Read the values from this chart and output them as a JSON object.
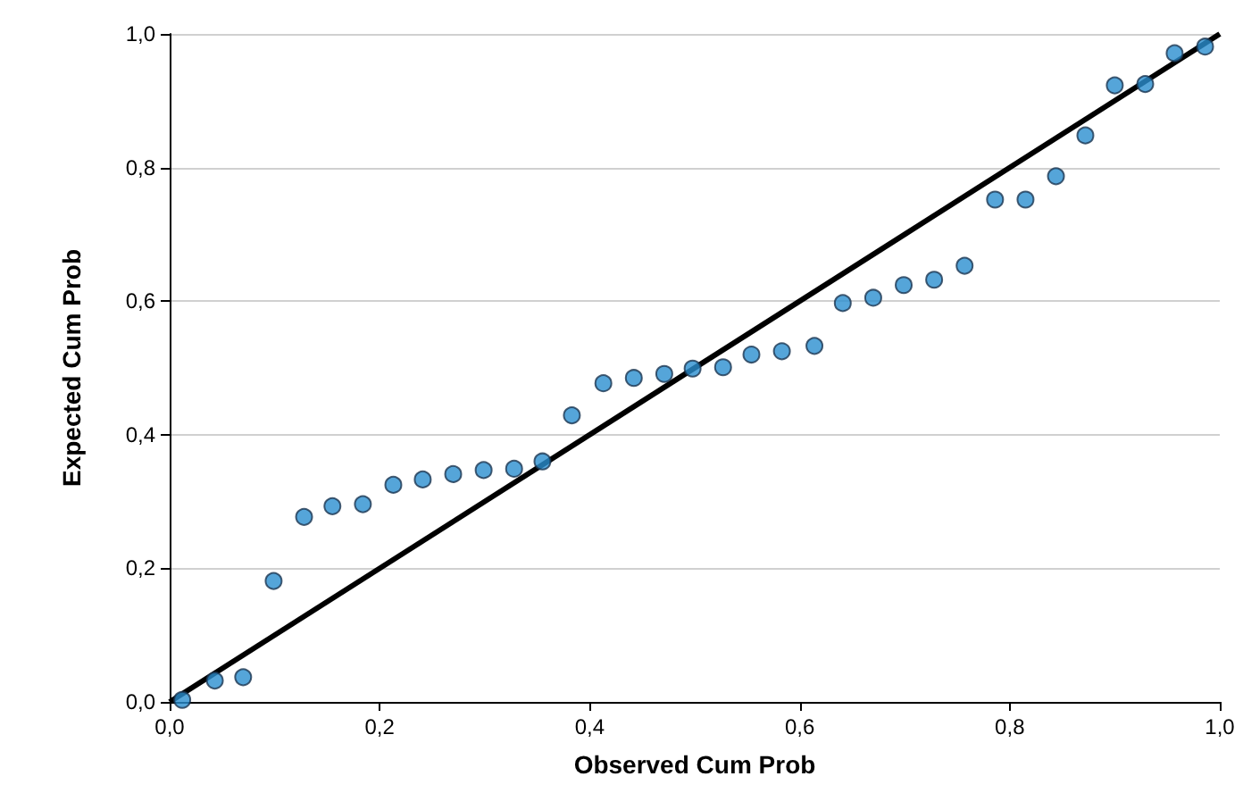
{
  "chart_data": {
    "type": "scatter",
    "xlabel": "Observed Cum Prob",
    "ylabel": "Expected Cum Prob",
    "xlim": [
      0,
      1
    ],
    "ylim": [
      0,
      1
    ],
    "xticks": [
      {
        "value": 0,
        "label": "0,0"
      },
      {
        "value": 0.2,
        "label": "0,2"
      },
      {
        "value": 0.4,
        "label": "0,4"
      },
      {
        "value": 0.6,
        "label": "0,6"
      },
      {
        "value": 0.8,
        "label": "0,8"
      },
      {
        "value": 1,
        "label": "1,0"
      }
    ],
    "yticks": [
      {
        "value": 0,
        "label": "0,0"
      },
      {
        "value": 0.2,
        "label": "0,2"
      },
      {
        "value": 0.4,
        "label": "0,4"
      },
      {
        "value": 0.6,
        "label": "0,6"
      },
      {
        "value": 0.8,
        "label": "0,8"
      },
      {
        "value": 1,
        "label": "1,0"
      }
    ],
    "grid": "y",
    "series": [
      {
        "marker": "circle",
        "color": "#2a8fd0",
        "x": [
          0.012,
          0.043,
          0.07,
          0.099,
          0.128,
          0.155,
          0.184,
          0.213,
          0.241,
          0.27,
          0.299,
          0.328,
          0.355,
          0.383,
          0.413,
          0.442,
          0.471,
          0.498,
          0.527,
          0.554,
          0.583,
          0.614,
          0.641,
          0.67,
          0.699,
          0.728,
          0.757,
          0.786,
          0.815,
          0.844,
          0.872,
          0.9,
          0.929,
          0.957,
          0.986
        ],
        "values": [
          0.003,
          0.032,
          0.037,
          0.181,
          0.277,
          0.293,
          0.296,
          0.325,
          0.333,
          0.341,
          0.347,
          0.349,
          0.36,
          0.429,
          0.477,
          0.485,
          0.491,
          0.499,
          0.501,
          0.52,
          0.525,
          0.533,
          0.597,
          0.605,
          0.624,
          0.632,
          0.653,
          0.752,
          0.752,
          0.787,
          0.848,
          0.923,
          0.925,
          0.971,
          0.981
        ]
      },
      {
        "type": "line",
        "color": "#000000",
        "x": [
          0,
          1
        ],
        "values": [
          0,
          1
        ],
        "line_style": "solid",
        "marker": "none"
      }
    ]
  }
}
